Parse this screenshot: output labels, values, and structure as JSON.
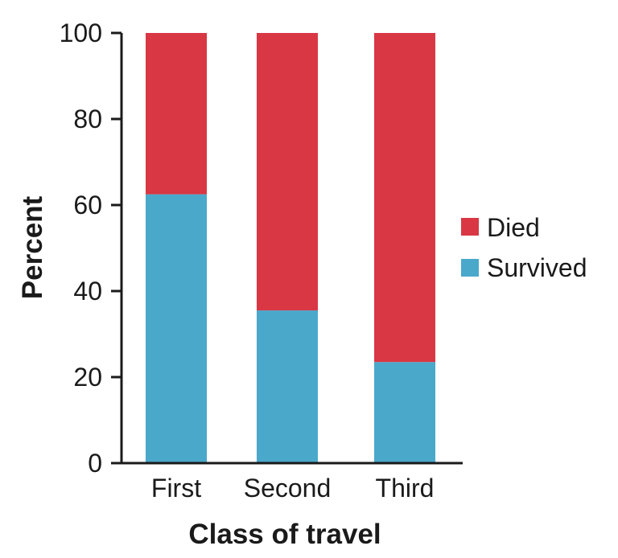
{
  "chart_data": {
    "type": "bar",
    "stacked": true,
    "title": "",
    "xlabel": "Class of travel",
    "ylabel": "Percent",
    "categories": [
      "First",
      "Second",
      "Third"
    ],
    "ylim": [
      0,
      100
    ],
    "yticks": [
      0,
      20,
      40,
      60,
      80,
      100
    ],
    "series": [
      {
        "name": "Survived",
        "color": "#4aa8cb",
        "values": [
          62.5,
          35.5,
          23.5
        ]
      },
      {
        "name": "Died",
        "color": "#d93744",
        "values": [
          37.5,
          64.5,
          76.5
        ]
      }
    ],
    "legend": {
      "placement": "right",
      "entries": [
        {
          "label": "Died",
          "color": "#d93744"
        },
        {
          "label": "Survived",
          "color": "#4aa8cb"
        }
      ]
    },
    "grid": false
  }
}
